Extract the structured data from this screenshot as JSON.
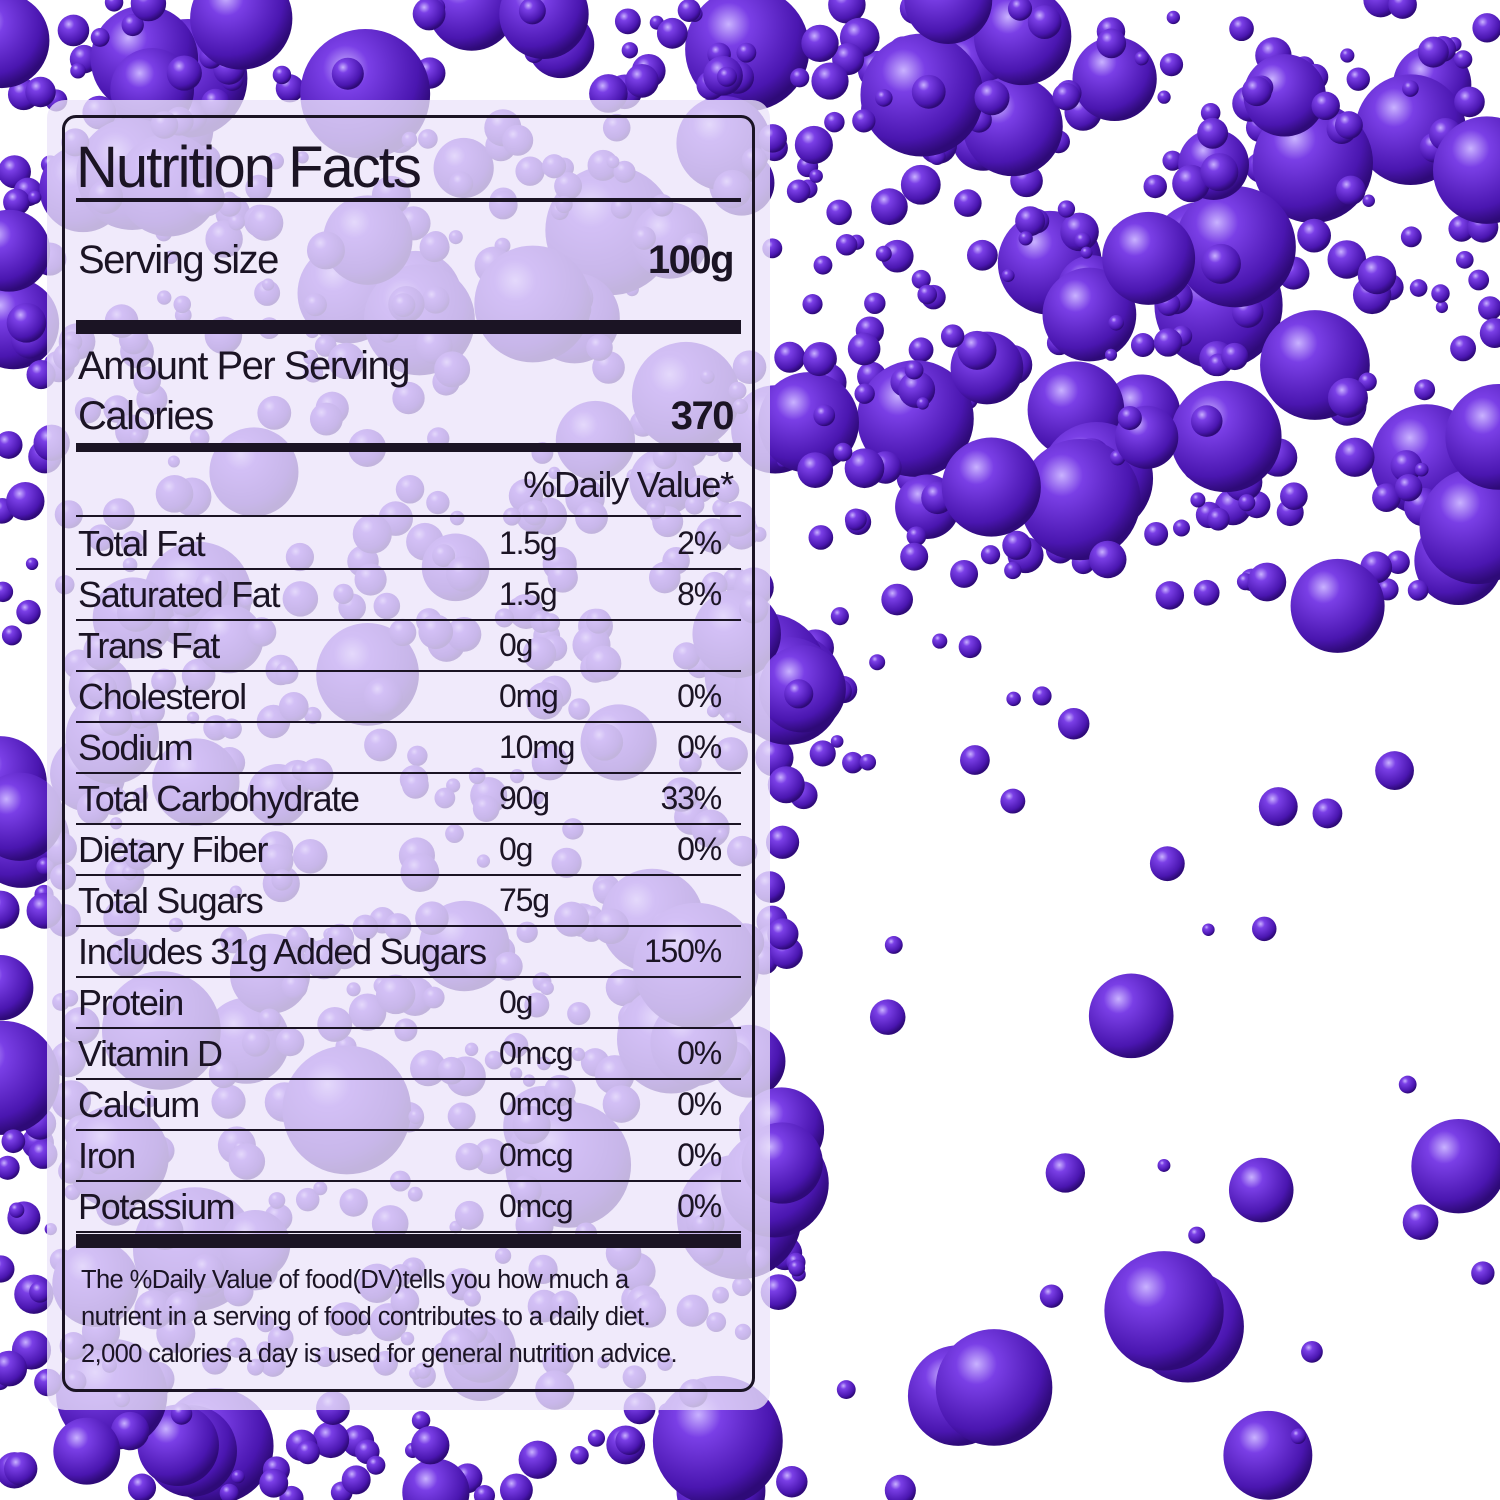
{
  "colors": {
    "bead": "#5a22c8",
    "text": "#1b1424",
    "panel": "#ece4fa"
  },
  "label": {
    "title": "Nutrition Facts",
    "serving_label": "Serving size",
    "serving_value": "100g",
    "amount_per_serving": "Amount Per Serving",
    "calories_label": "Calories",
    "calories_value": "370",
    "dv_header": "%Daily Value*",
    "rows": [
      {
        "name": "Total Fat",
        "amount": "1.5g",
        "dv": "2%"
      },
      {
        "name": "Saturated Fat",
        "amount": "1.5g",
        "dv": "8%"
      },
      {
        "name": "Trans Fat",
        "amount": "0g",
        "dv": ""
      },
      {
        "name": "Cholesterol",
        "amount": "0mg",
        "dv": "0%"
      },
      {
        "name": "Sodium",
        "amount": "10mg",
        "dv": "0%"
      },
      {
        "name": "Total Carbohydrate",
        "amount": "90g",
        "dv": "33%"
      },
      {
        "name": "Dietary Fiber",
        "amount": "0g",
        "dv": "0%"
      },
      {
        "name": "Total Sugars",
        "amount": "75g",
        "dv": ""
      },
      {
        "name": "Includes 31g Added Sugars",
        "amount": "",
        "dv": "150%"
      },
      {
        "name": "Protein",
        "amount": "0g",
        "dv": ""
      },
      {
        "name": "Vitamin D",
        "amount": "0mcg",
        "dv": "0%"
      },
      {
        "name": "Calcium",
        "amount": "0mcg",
        "dv": "0%"
      },
      {
        "name": "Iron",
        "amount": "0mcg",
        "dv": "0%"
      },
      {
        "name": "Potassium",
        "amount": "0mcg",
        "dv": "0%"
      }
    ],
    "footnote": [
      "The %Daily Value of food(DV)tells you how much a",
      "nutrient in a serving of food contributes to a daily diet.",
      "2,000 calories a day is used for general nutrition advice."
    ]
  }
}
